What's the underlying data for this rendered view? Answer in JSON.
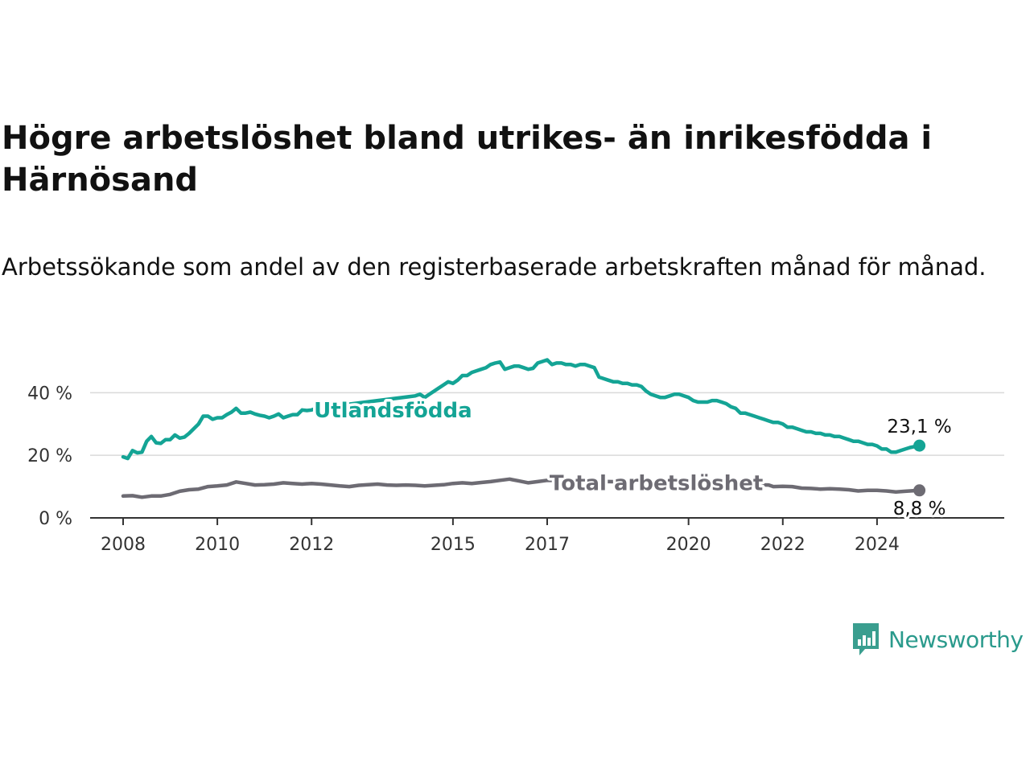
{
  "title": "Högre arbetslöshet bland utrikes- än inrikesfödda i Härnösand",
  "subtitle": "Arbetssökande som andel av den registerbaserade arbetskraften månad för månad.",
  "brand": {
    "name": "Newsworthy",
    "color": "#3a9e8f"
  },
  "chart_data": {
    "type": "line",
    "x_ticks": [
      "2008",
      "2010",
      "2012",
      "2015",
      "2017",
      "2020",
      "2022",
      "2024"
    ],
    "y_ticks": [
      {
        "value": 0,
        "label": "0 %"
      },
      {
        "value": 20,
        "label": "20 %"
      },
      {
        "value": 40,
        "label": "40 %"
      }
    ],
    "xlim": [
      2007.3,
      2026.7
    ],
    "ylim": [
      0,
      55
    ],
    "grid": true,
    "series": [
      {
        "name": "Utlandsfödda",
        "color": "#14a495",
        "end_label": "23,1 %",
        "points": [
          [
            2008.0,
            19.5
          ],
          [
            2008.1,
            19.0
          ],
          [
            2008.2,
            21.5
          ],
          [
            2008.3,
            20.8
          ],
          [
            2008.4,
            21.0
          ],
          [
            2008.5,
            24.5
          ],
          [
            2008.6,
            26.0
          ],
          [
            2008.7,
            24.0
          ],
          [
            2008.8,
            23.8
          ],
          [
            2008.9,
            25.0
          ],
          [
            2009.0,
            25.0
          ],
          [
            2009.1,
            26.5
          ],
          [
            2009.2,
            25.5
          ],
          [
            2009.3,
            25.8
          ],
          [
            2009.4,
            27.0
          ],
          [
            2009.5,
            28.5
          ],
          [
            2009.6,
            30.0
          ],
          [
            2009.7,
            32.5
          ],
          [
            2009.8,
            32.5
          ],
          [
            2009.9,
            31.5
          ],
          [
            2010.0,
            32.0
          ],
          [
            2010.1,
            32.0
          ],
          [
            2010.2,
            33.0
          ],
          [
            2010.3,
            33.8
          ],
          [
            2010.4,
            35.0
          ],
          [
            2010.5,
            33.5
          ],
          [
            2010.6,
            33.5
          ],
          [
            2010.7,
            33.8
          ],
          [
            2010.8,
            33.2
          ],
          [
            2010.9,
            32.8
          ],
          [
            2011.0,
            32.5
          ],
          [
            2011.1,
            32.0
          ],
          [
            2011.2,
            32.5
          ],
          [
            2011.3,
            33.2
          ],
          [
            2011.4,
            32.0
          ],
          [
            2011.5,
            32.5
          ],
          [
            2011.6,
            33.0
          ],
          [
            2011.7,
            33.0
          ],
          [
            2011.8,
            34.5
          ],
          [
            2011.9,
            34.3
          ],
          [
            2012.0,
            34.5
          ],
          [
            2012.1,
            35.0
          ],
          [
            2012.2,
            35.2
          ],
          [
            2014.2,
            39.0
          ],
          [
            2014.3,
            39.5
          ],
          [
            2014.4,
            38.5
          ],
          [
            2014.5,
            39.5
          ],
          [
            2014.6,
            40.5
          ],
          [
            2014.7,
            41.5
          ],
          [
            2014.8,
            42.5
          ],
          [
            2014.9,
            43.5
          ],
          [
            2015.0,
            43.0
          ],
          [
            2015.1,
            44.0
          ],
          [
            2015.2,
            45.5
          ],
          [
            2015.3,
            45.5
          ],
          [
            2015.4,
            46.5
          ],
          [
            2015.5,
            47.0
          ],
          [
            2015.6,
            47.5
          ],
          [
            2015.7,
            48.0
          ],
          [
            2015.8,
            49.0
          ],
          [
            2015.9,
            49.5
          ],
          [
            2016.0,
            49.8
          ],
          [
            2016.1,
            47.5
          ],
          [
            2016.2,
            48.0
          ],
          [
            2016.3,
            48.5
          ],
          [
            2016.4,
            48.5
          ],
          [
            2016.5,
            48.0
          ],
          [
            2016.6,
            47.5
          ],
          [
            2016.7,
            47.8
          ],
          [
            2016.8,
            49.5
          ],
          [
            2016.9,
            50.0
          ],
          [
            2017.0,
            50.5
          ],
          [
            2017.1,
            49.0
          ],
          [
            2017.2,
            49.5
          ],
          [
            2017.3,
            49.5
          ],
          [
            2017.4,
            49.0
          ],
          [
            2017.5,
            49.0
          ],
          [
            2017.6,
            48.5
          ],
          [
            2017.7,
            49.0
          ],
          [
            2017.8,
            49.0
          ],
          [
            2017.9,
            48.5
          ],
          [
            2018.0,
            48.0
          ],
          [
            2018.1,
            45.0
          ],
          [
            2018.2,
            44.5
          ],
          [
            2018.3,
            44.0
          ],
          [
            2018.4,
            43.5
          ],
          [
            2018.5,
            43.5
          ],
          [
            2018.6,
            43.0
          ],
          [
            2018.7,
            43.0
          ],
          [
            2018.8,
            42.5
          ],
          [
            2018.9,
            42.5
          ],
          [
            2019.0,
            42.0
          ],
          [
            2019.1,
            40.5
          ],
          [
            2019.2,
            39.5
          ],
          [
            2019.3,
            39.0
          ],
          [
            2019.4,
            38.5
          ],
          [
            2019.5,
            38.5
          ],
          [
            2019.6,
            39.0
          ],
          [
            2019.7,
            39.5
          ],
          [
            2019.8,
            39.5
          ],
          [
            2019.9,
            39.0
          ],
          [
            2020.0,
            38.5
          ],
          [
            2020.1,
            37.5
          ],
          [
            2020.2,
            37.0
          ],
          [
            2020.3,
            37.0
          ],
          [
            2020.4,
            37.0
          ],
          [
            2020.5,
            37.5
          ],
          [
            2020.6,
            37.5
          ],
          [
            2020.7,
            37.0
          ],
          [
            2020.8,
            36.5
          ],
          [
            2020.9,
            35.5
          ],
          [
            2021.0,
            35.0
          ],
          [
            2021.1,
            33.5
          ],
          [
            2021.2,
            33.5
          ],
          [
            2021.3,
            33.0
          ],
          [
            2021.4,
            32.5
          ],
          [
            2021.5,
            32.0
          ],
          [
            2021.6,
            31.5
          ],
          [
            2021.7,
            31.0
          ],
          [
            2021.8,
            30.5
          ],
          [
            2021.9,
            30.5
          ],
          [
            2022.0,
            30.0
          ],
          [
            2022.1,
            29.0
          ],
          [
            2022.2,
            29.0
          ],
          [
            2022.3,
            28.5
          ],
          [
            2022.4,
            28.0
          ],
          [
            2022.5,
            27.5
          ],
          [
            2022.6,
            27.5
          ],
          [
            2022.7,
            27.0
          ],
          [
            2022.8,
            27.0
          ],
          [
            2022.9,
            26.5
          ],
          [
            2023.0,
            26.5
          ],
          [
            2023.1,
            26.0
          ],
          [
            2023.2,
            26.0
          ],
          [
            2023.3,
            25.5
          ],
          [
            2023.4,
            25.0
          ],
          [
            2023.5,
            24.5
          ],
          [
            2023.6,
            24.5
          ],
          [
            2023.7,
            24.0
          ],
          [
            2023.8,
            23.5
          ],
          [
            2023.9,
            23.5
          ],
          [
            2024.0,
            23.0
          ],
          [
            2024.1,
            22.0
          ],
          [
            2024.2,
            22.0
          ],
          [
            2024.3,
            21.0
          ],
          [
            2024.4,
            21.0
          ],
          [
            2024.5,
            21.5
          ],
          [
            2024.6,
            22.0
          ],
          [
            2024.7,
            22.5
          ],
          [
            2024.9,
            23.1
          ]
        ]
      },
      {
        "name": "Total arbetslöshet",
        "color": "#6d6b73",
        "end_label": "8,8 %",
        "points": [
          [
            2008.0,
            7.0
          ],
          [
            2008.2,
            7.1
          ],
          [
            2008.4,
            6.6
          ],
          [
            2008.6,
            7.0
          ],
          [
            2008.8,
            7.0
          ],
          [
            2009.0,
            7.5
          ],
          [
            2009.2,
            8.5
          ],
          [
            2009.4,
            9.0
          ],
          [
            2009.6,
            9.2
          ],
          [
            2009.8,
            10.0
          ],
          [
            2010.0,
            10.2
          ],
          [
            2010.2,
            10.5
          ],
          [
            2010.4,
            11.5
          ],
          [
            2010.6,
            11.0
          ],
          [
            2010.8,
            10.5
          ],
          [
            2011.0,
            10.6
          ],
          [
            2011.2,
            10.8
          ],
          [
            2011.4,
            11.2
          ],
          [
            2011.6,
            11.0
          ],
          [
            2011.8,
            10.8
          ],
          [
            2012.0,
            11.0
          ],
          [
            2012.2,
            10.8
          ],
          [
            2012.4,
            10.5
          ],
          [
            2012.6,
            10.2
          ],
          [
            2012.8,
            10.0
          ],
          [
            2013.0,
            10.4
          ],
          [
            2013.2,
            10.6
          ],
          [
            2013.4,
            10.8
          ],
          [
            2013.6,
            10.5
          ],
          [
            2013.8,
            10.4
          ],
          [
            2014.0,
            10.5
          ],
          [
            2014.2,
            10.4
          ],
          [
            2014.4,
            10.2
          ],
          [
            2014.6,
            10.4
          ],
          [
            2014.8,
            10.6
          ],
          [
            2015.0,
            11.0
          ],
          [
            2015.2,
            11.2
          ],
          [
            2015.4,
            11.0
          ],
          [
            2015.6,
            11.3
          ],
          [
            2015.8,
            11.6
          ],
          [
            2016.0,
            12.0
          ],
          [
            2016.2,
            12.4
          ],
          [
            2016.4,
            11.8
          ],
          [
            2016.6,
            11.2
          ],
          [
            2016.8,
            11.6
          ],
          [
            2017.0,
            12.0
          ],
          [
            2021.7,
            10.5
          ],
          [
            2021.8,
            10.0
          ],
          [
            2022.0,
            10.1
          ],
          [
            2022.2,
            10.0
          ],
          [
            2022.4,
            9.5
          ],
          [
            2022.6,
            9.4
          ],
          [
            2022.8,
            9.2
          ],
          [
            2023.0,
            9.3
          ],
          [
            2023.2,
            9.2
          ],
          [
            2023.4,
            9.0
          ],
          [
            2023.6,
            8.6
          ],
          [
            2023.8,
            8.8
          ],
          [
            2024.0,
            8.8
          ],
          [
            2024.2,
            8.6
          ],
          [
            2024.4,
            8.3
          ],
          [
            2024.6,
            8.5
          ],
          [
            2024.9,
            8.8
          ]
        ]
      }
    ]
  }
}
